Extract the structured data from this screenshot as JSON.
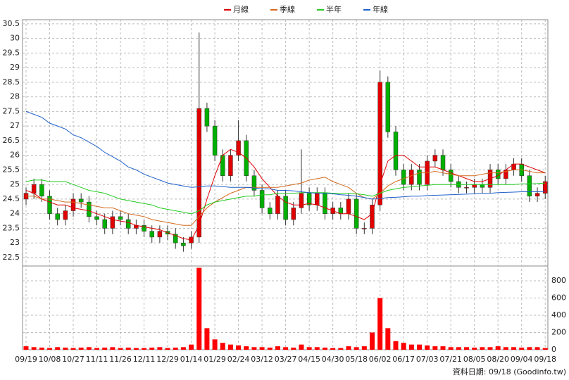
{
  "chart_data": {
    "type": "candlestick",
    "categories": [
      "09/19",
      null,
      null,
      "10/08",
      null,
      null,
      "10/27",
      null,
      null,
      "11/11",
      null,
      null,
      "11/26",
      null,
      null,
      "12/11",
      null,
      null,
      "12/29",
      null,
      null,
      "01/14",
      null,
      null,
      "01/29",
      null,
      null,
      "02/24",
      null,
      null,
      "03/12",
      null,
      null,
      "03/27",
      null,
      null,
      "04/15",
      null,
      null,
      "04/30",
      null,
      null,
      "05/18",
      null,
      null,
      "06/02",
      null,
      null,
      "06/17",
      null,
      null,
      "07/03",
      null,
      null,
      "07/21",
      null,
      null,
      "08/05",
      null,
      null,
      "08/20",
      null,
      null,
      "09/04",
      null,
      null,
      "09/18"
    ],
    "open": [
      24.5,
      24.7,
      25.0,
      24.6,
      24.0,
      23.8,
      24.1,
      24.5,
      24.4,
      23.9,
      23.8,
      23.5,
      23.9,
      23.8,
      23.5,
      23.6,
      23.4,
      23.2,
      23.4,
      23.3,
      23.0,
      23.0,
      23.2,
      27.6,
      27.0,
      26.0,
      25.3,
      26.0,
      26.5,
      25.3,
      24.8,
      24.2,
      24.0,
      24.6,
      23.8,
      24.2,
      24.7,
      24.3,
      24.7,
      24.0,
      24.2,
      24.0,
      24.5,
      23.5,
      23.5,
      24.3,
      28.5,
      26.8,
      25.5,
      25.0,
      25.5,
      25.0,
      25.8,
      26.0,
      25.5,
      25.1,
      24.9,
      24.9,
      25.0,
      24.9,
      25.5,
      25.2,
      25.5,
      25.7,
      25.3,
      24.6,
      24.7
    ],
    "high": [
      24.9,
      25.2,
      25.2,
      24.8,
      24.2,
      24.3,
      24.7,
      24.7,
      24.6,
      24.1,
      24.0,
      24.1,
      24.1,
      24.0,
      23.8,
      23.8,
      23.6,
      23.6,
      23.6,
      23.5,
      23.2,
      23.4,
      30.2,
      27.8,
      27.2,
      26.2,
      26.2,
      27.2,
      26.7,
      25.5,
      25.0,
      24.4,
      24.8,
      24.8,
      24.4,
      26.2,
      24.9,
      24.9,
      24.9,
      24.4,
      24.4,
      24.7,
      24.7,
      23.7,
      24.5,
      28.9,
      28.7,
      27.0,
      25.7,
      25.7,
      25.7,
      26.0,
      26.2,
      26.2,
      25.7,
      25.3,
      25.1,
      25.2,
      25.2,
      25.7,
      25.7,
      25.7,
      25.9,
      25.9,
      25.5,
      24.9,
      25.3
    ],
    "low": [
      24.3,
      24.5,
      24.4,
      23.8,
      23.6,
      23.6,
      23.9,
      24.2,
      23.7,
      23.6,
      23.3,
      23.3,
      23.6,
      23.3,
      23.3,
      23.2,
      23.0,
      23.0,
      23.1,
      22.8,
      22.7,
      22.8,
      23.0,
      26.8,
      25.8,
      25.1,
      25.1,
      25.8,
      25.1,
      24.6,
      24.0,
      23.8,
      23.8,
      23.6,
      23.6,
      24.0,
      24.1,
      24.1,
      23.8,
      23.8,
      23.8,
      23.8,
      23.3,
      23.3,
      23.3,
      24.1,
      26.6,
      25.3,
      24.8,
      24.8,
      24.8,
      24.8,
      25.6,
      25.3,
      24.9,
      24.7,
      24.7,
      24.7,
      24.7,
      24.7,
      25.0,
      25.0,
      25.3,
      25.1,
      24.4,
      24.4,
      24.5
    ],
    "close": [
      24.7,
      25.0,
      24.6,
      24.0,
      23.8,
      24.1,
      24.5,
      24.4,
      23.9,
      23.8,
      23.5,
      23.9,
      23.8,
      23.5,
      23.6,
      23.4,
      23.2,
      23.4,
      23.3,
      23.0,
      22.9,
      23.2,
      27.6,
      27.0,
      26.0,
      25.3,
      26.0,
      26.5,
      25.3,
      24.8,
      24.2,
      24.0,
      24.6,
      23.8,
      24.2,
      24.7,
      24.3,
      24.7,
      24.0,
      24.2,
      24.0,
      24.5,
      23.5,
      23.5,
      24.3,
      28.5,
      26.8,
      25.5,
      25.0,
      25.5,
      25.0,
      25.8,
      26.0,
      25.5,
      25.1,
      24.9,
      24.9,
      25.0,
      24.9,
      25.5,
      25.2,
      25.5,
      25.7,
      25.3,
      24.6,
      24.7,
      25.1
    ],
    "up_color": "#e00000",
    "down_color": "#00b000",
    "ylim": [
      22.21,
      30.64
    ],
    "yticks": [
      22.5,
      23,
      23.5,
      24,
      24.5,
      25,
      25.5,
      26,
      26.5,
      27,
      27.5,
      28,
      28.5,
      29,
      29.5,
      30,
      30.5
    ],
    "series": [
      {
        "name": "月線",
        "color": "#e00000",
        "values": [
          24.8,
          24.7,
          24.5,
          24.4,
          24.3,
          24.3,
          24.2,
          24.15,
          24.1,
          24.0,
          23.9,
          23.8,
          23.75,
          23.7,
          23.6,
          23.55,
          23.5,
          23.45,
          23.35,
          23.25,
          23.15,
          23.1,
          23.6,
          24.5,
          25.3,
          26.0,
          26.2,
          26.1,
          25.9,
          25.6,
          25.2,
          24.9,
          24.6,
          24.4,
          24.3,
          24.3,
          24.35,
          24.3,
          24.2,
          24.1,
          24.0,
          24.0,
          23.9,
          23.8,
          24.0,
          25.0,
          25.8,
          26.0,
          26.0,
          25.8,
          25.6,
          25.6,
          25.6,
          25.5,
          25.4,
          25.3,
          25.2,
          25.1,
          25.1,
          25.2,
          25.3,
          25.5,
          25.7,
          25.7,
          25.6,
          25.5,
          25.4
        ]
      },
      {
        "name": "季線",
        "color": "#d2691e",
        "values": [
          24.6,
          24.6,
          24.5,
          24.5,
          24.45,
          24.4,
          24.4,
          24.35,
          24.3,
          24.25,
          24.2,
          24.2,
          24.1,
          24.0,
          23.95,
          23.9,
          23.8,
          23.75,
          23.7,
          23.65,
          23.6,
          23.6,
          23.9,
          24.2,
          24.4,
          24.55,
          24.7,
          24.8,
          24.9,
          24.9,
          24.9,
          24.9,
          24.9,
          24.95,
          25.0,
          25.05,
          25.15,
          25.2,
          25.25,
          25.1,
          25.0,
          24.9,
          24.7,
          24.55,
          24.5,
          24.7,
          24.95,
          25.1,
          25.2,
          25.3,
          25.4,
          25.4,
          25.45,
          25.4,
          25.35,
          25.3,
          25.3,
          25.3,
          25.35,
          25.4,
          25.4,
          25.45,
          25.5,
          25.5,
          25.45,
          25.4,
          25.4
        ]
      },
      {
        "name": "半年",
        "color": "#22cc22",
        "values": [
          25.1,
          25.15,
          25.15,
          25.1,
          25.1,
          25.1,
          25.0,
          24.9,
          24.8,
          24.75,
          24.7,
          24.6,
          24.5,
          24.45,
          24.4,
          24.35,
          24.3,
          24.2,
          24.15,
          24.1,
          24.05,
          24.0,
          24.1,
          24.3,
          24.4,
          24.45,
          24.5,
          24.55,
          24.6,
          24.6,
          24.65,
          24.65,
          24.7,
          24.7,
          24.7,
          24.72,
          24.72,
          24.72,
          24.72,
          24.7,
          24.7,
          24.7,
          24.68,
          24.65,
          24.6,
          24.7,
          24.8,
          24.85,
          24.9,
          24.92,
          24.95,
          24.97,
          25.0,
          25.0,
          25.0,
          25.0,
          25.0,
          25.0,
          25.0,
          25.0,
          25.0,
          25.0,
          25.0,
          25.02,
          25.02,
          25.03,
          25.05
        ]
      },
      {
        "name": "年線",
        "color": "#1f5fcc",
        "values": [
          27.5,
          27.4,
          27.3,
          27.1,
          27.0,
          26.9,
          26.7,
          26.6,
          26.45,
          26.3,
          26.1,
          25.95,
          25.8,
          25.6,
          25.5,
          25.35,
          25.25,
          25.15,
          25.05,
          25.0,
          24.95,
          24.9,
          24.92,
          24.95,
          24.95,
          24.93,
          24.9,
          24.9,
          24.9,
          24.88,
          24.85,
          24.85,
          24.8,
          24.8,
          24.78,
          24.75,
          24.72,
          24.7,
          24.7,
          24.68,
          24.65,
          24.63,
          24.6,
          24.55,
          24.5,
          24.52,
          24.55,
          24.56,
          24.58,
          24.6,
          24.6,
          24.62,
          24.63,
          24.64,
          24.65,
          24.66,
          24.67,
          24.68,
          24.7,
          24.7,
          24.72,
          24.73,
          24.74,
          24.75,
          24.75,
          24.75,
          24.76
        ]
      }
    ],
    "volume": {
      "color": "#ff0000",
      "ylim": [
        0,
        971
      ],
      "yticks": [
        0,
        200,
        400,
        600,
        800
      ],
      "values": [
        40,
        30,
        25,
        20,
        30,
        25,
        20,
        25,
        30,
        20,
        25,
        30,
        20,
        25,
        20,
        20,
        25,
        30,
        20,
        25,
        30,
        60,
        950,
        250,
        120,
        80,
        60,
        50,
        40,
        30,
        30,
        25,
        40,
        30,
        25,
        60,
        30,
        30,
        25,
        20,
        20,
        40,
        30,
        40,
        200,
        600,
        250,
        100,
        80,
        60,
        60,
        50,
        40,
        40,
        30,
        30,
        30,
        25,
        30,
        30,
        40,
        30,
        30,
        25,
        30,
        30,
        20
      ]
    },
    "footer": "資料日期: 09/18  (Goodinfo.tw)"
  }
}
